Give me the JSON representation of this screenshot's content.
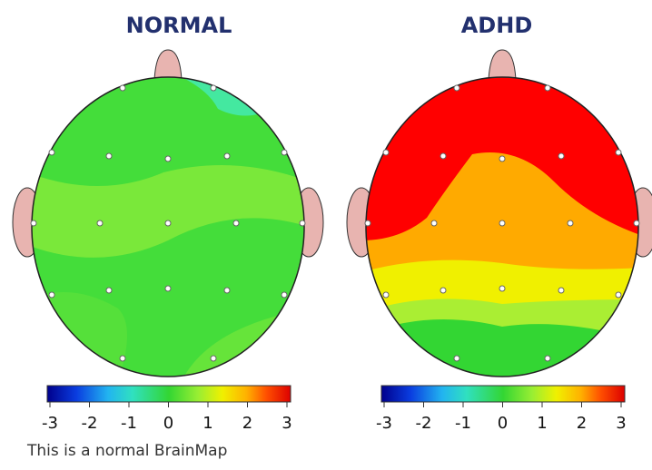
{
  "maps": [
    {
      "title": "NORMAL",
      "scale": {
        "ticks": [
          -3,
          -2,
          -1,
          0,
          1,
          2,
          3
        ]
      }
    },
    {
      "title": "ADHD",
      "scale": {
        "ticks": [
          -3,
          -2,
          -1,
          0,
          1,
          2,
          3
        ]
      }
    }
  ],
  "caption": "This is a normal BrainMap"
}
